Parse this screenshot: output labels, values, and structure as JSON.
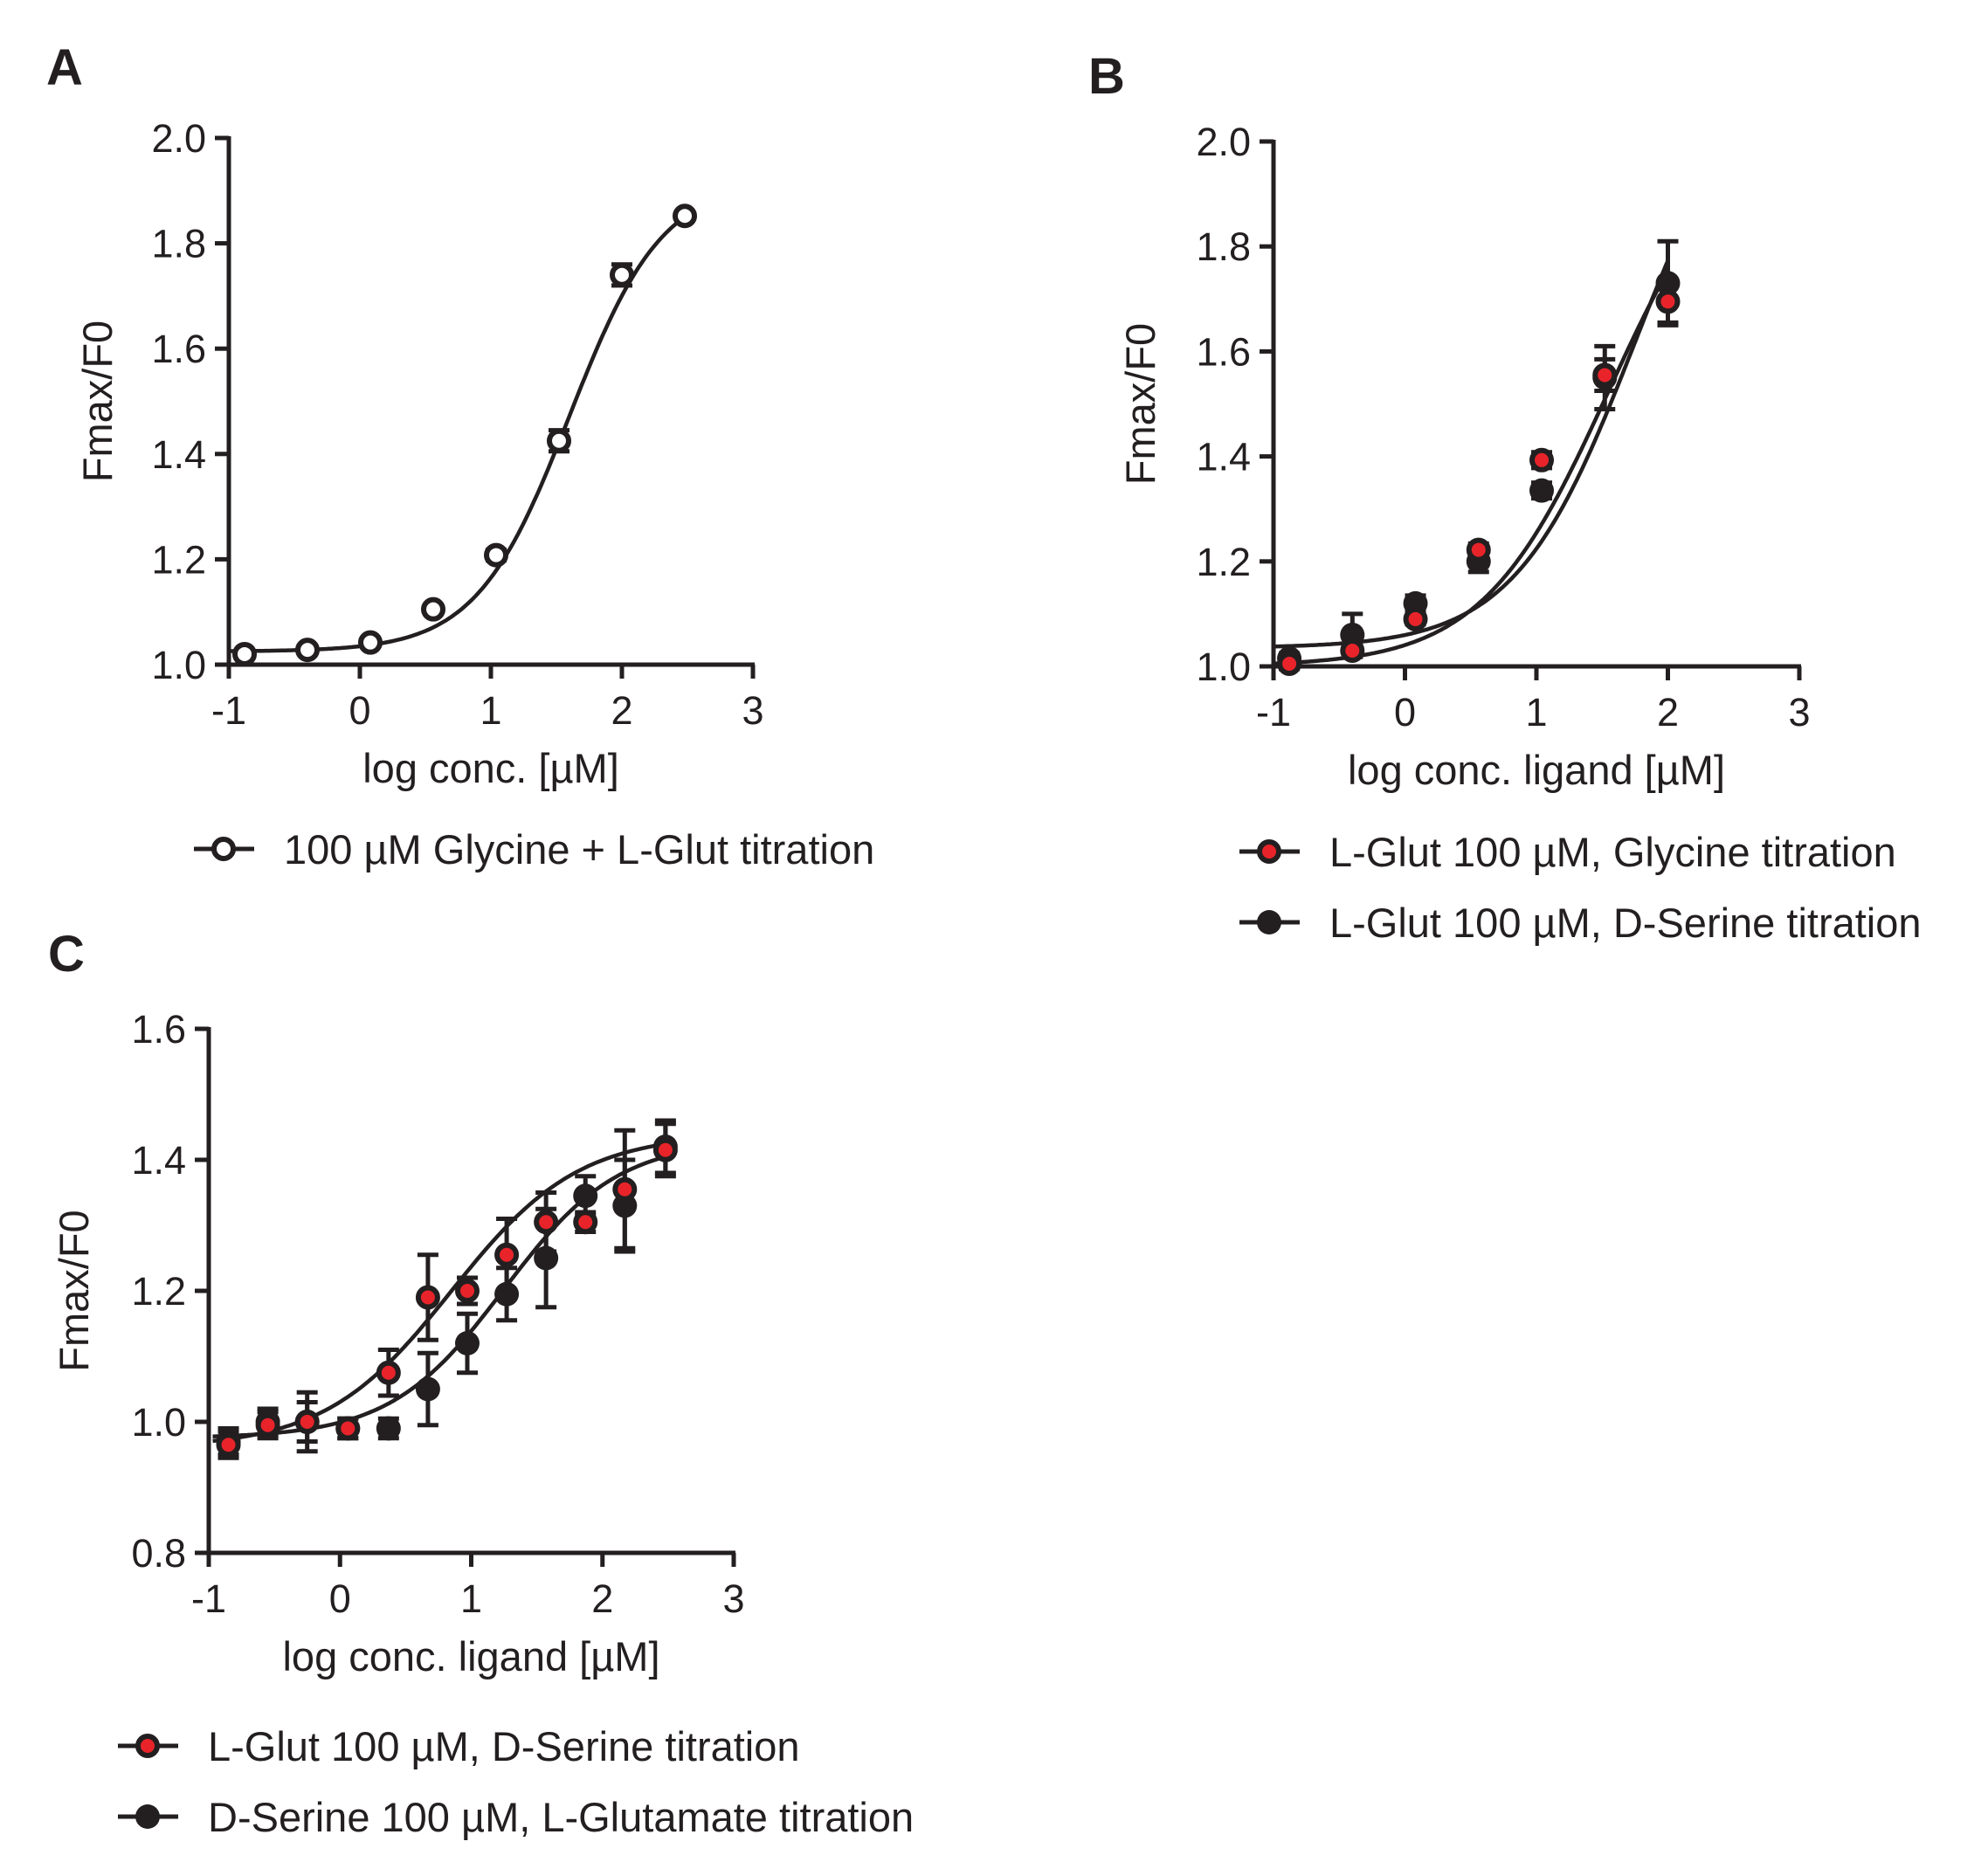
{
  "panels": {
    "A": {
      "letter": "A"
    },
    "B": {
      "letter": "B"
    },
    "C": {
      "letter": "C"
    }
  },
  "colors": {
    "ink": "#231f20",
    "red": "#e8242a",
    "white": "#ffffff"
  },
  "chart_data": [
    {
      "id": "A",
      "type": "scatter",
      "title": "",
      "xlabel": "log conc. [µM]",
      "ylabel": "Fmax/F0",
      "xlim": [
        -1,
        3
      ],
      "ylim": [
        1.0,
        2.0
      ],
      "xticks": [
        -1,
        0,
        1,
        2,
        3
      ],
      "xtick_labels": [
        "-1",
        "0",
        "1",
        "2",
        "3"
      ],
      "yticks": [
        1.0,
        1.2,
        1.4,
        1.6,
        1.8,
        2.0
      ],
      "ytick_labels": [
        "1.0",
        "1.2",
        "1.4",
        "1.6",
        "1.8",
        "2.0"
      ],
      "grid": false,
      "legend_position": "bottom",
      "series": [
        {
          "name": "100 µM Glycine + L-Glut titration",
          "marker": "open-circle",
          "x": [
            -0.88,
            -0.4,
            0.08,
            0.56,
            1.04,
            1.52,
            2.0,
            2.48
          ],
          "y": [
            1.02,
            1.028,
            1.042,
            1.105,
            1.208,
            1.425,
            1.74,
            1.852
          ],
          "err": [
            0.006,
            0.006,
            0.008,
            0.008,
            0.01,
            0.02,
            0.02,
            0.006
          ],
          "fit": {
            "bottom": 1.025,
            "top": 1.92,
            "logEC50": 1.6,
            "hill": 1.22
          }
        }
      ]
    },
    {
      "id": "B",
      "type": "scatter",
      "title": "",
      "xlabel": "log conc. ligand [µM]",
      "ylabel": "Fmax/F0",
      "xlim": [
        -1,
        3
      ],
      "ylim": [
        1.0,
        2.0
      ],
      "xticks": [
        -1,
        0,
        1,
        2,
        3
      ],
      "xtick_labels": [
        "-1",
        "0",
        "1",
        "2",
        "3"
      ],
      "yticks": [
        1.0,
        1.2,
        1.4,
        1.6,
        1.8,
        2.0
      ],
      "ytick_labels": [
        "1.0",
        "1.2",
        "1.4",
        "1.6",
        "1.8",
        "2.0"
      ],
      "grid": false,
      "legend_position": "bottom",
      "series": [
        {
          "name": "L-Glut 100 µM, Glycine titration",
          "marker": "red-dot",
          "x": [
            -0.88,
            -0.4,
            0.08,
            0.56,
            1.04,
            1.52,
            2.0
          ],
          "y": [
            1.005,
            1.03,
            1.09,
            1.222,
            1.393,
            1.555,
            1.695
          ],
          "err": [
            0.01,
            0.012,
            0.01,
            0.012,
            0.015,
            0.03,
            0.04
          ],
          "fit": {
            "bottom": 1.0,
            "top": 2.05,
            "logEC50": 1.55,
            "hill": 0.9
          }
        },
        {
          "name": "L-Glut 100 µM, D-Serine titration",
          "marker": "black-dot",
          "x": [
            -0.88,
            -0.4,
            0.08,
            0.56,
            1.04,
            1.52,
            2.0
          ],
          "y": [
            1.015,
            1.06,
            1.12,
            1.2,
            1.335,
            1.55,
            1.73
          ],
          "err": [
            0.01,
            0.04,
            0.015,
            0.02,
            0.015,
            0.06,
            0.08
          ],
          "fit": {
            "bottom": 1.035,
            "top": 2.2,
            "logEC50": 1.75,
            "hill": 0.95
          }
        }
      ]
    },
    {
      "id": "C",
      "type": "scatter",
      "title": "",
      "xlabel": "log conc. ligand [µM]",
      "ylabel": "Fmax/F0",
      "xlim": [
        -1,
        3
      ],
      "ylim": [
        0.8,
        1.6
      ],
      "xticks": [
        -1,
        0,
        1,
        2,
        3
      ],
      "xtick_labels": [
        "-1",
        "0",
        "1",
        "2",
        "3"
      ],
      "yticks": [
        0.8,
        1.0,
        1.2,
        1.4,
        1.6
      ],
      "ytick_labels": [
        "0.8",
        "1.0",
        "1.2",
        "1.4",
        "1.6"
      ],
      "grid": false,
      "legend_position": "bottom",
      "series": [
        {
          "name": "L-Glut 100 µM, D-Serine titration",
          "marker": "red-dot",
          "x": [
            -0.85,
            -0.55,
            -0.25,
            0.06,
            0.37,
            0.67,
            0.97,
            1.27,
            1.57,
            1.87,
            2.17,
            2.48
          ],
          "y": [
            0.965,
            0.995,
            1.0,
            0.99,
            1.075,
            1.19,
            1.2,
            1.255,
            1.305,
            1.305,
            1.355,
            1.415
          ],
          "err": [
            0.02,
            0.02,
            0.03,
            0.015,
            0.035,
            0.065,
            0.02,
            0.055,
            0.045,
            0.015,
            0.09,
            0.04
          ],
          "fit": {
            "bottom": 0.96,
            "top": 1.44,
            "logEC50": 0.85,
            "hill": 0.9
          }
        },
        {
          "name": "D-Serine 100 µM, L-Glutamate titration",
          "marker": "black-dot",
          "x": [
            -0.85,
            -0.55,
            -0.25,
            0.06,
            0.37,
            0.67,
            0.97,
            1.27,
            1.57,
            1.87,
            2.17,
            2.48
          ],
          "y": [
            0.97,
            1.0,
            1.0,
            0.99,
            0.99,
            1.05,
            1.12,
            1.195,
            1.25,
            1.345,
            1.33,
            1.42
          ],
          "err": [
            0.02,
            0.02,
            0.045,
            0.015,
            0.015,
            0.055,
            0.045,
            0.04,
            0.075,
            0.03,
            0.07,
            0.04
          ],
          "fit": {
            "bottom": 0.975,
            "top": 1.43,
            "logEC50": 1.25,
            "hill": 1.0
          }
        }
      ]
    }
  ]
}
